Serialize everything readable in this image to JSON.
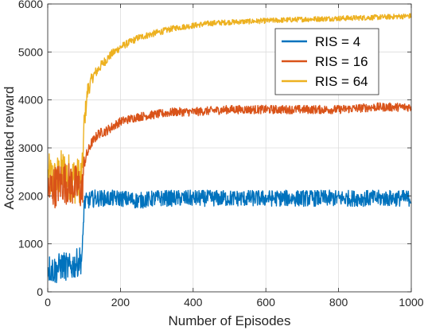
{
  "chart_data": {
    "type": "line",
    "title": "",
    "xlabel": "Number of Episodes",
    "ylabel": "Accumulated reward",
    "xlim": [
      0,
      1000
    ],
    "ylim": [
      0,
      6000
    ],
    "xticks": [
      0,
      200,
      400,
      600,
      800,
      1000
    ],
    "yticks": [
      0,
      1000,
      2000,
      3000,
      4000,
      5000,
      6000
    ],
    "xtick_labels": [
      "0",
      "200",
      "400",
      "600",
      "800",
      "1000"
    ],
    "ytick_labels": [
      "0",
      "1000",
      "2000",
      "3000",
      "4000",
      "5000",
      "6000"
    ],
    "grid": true,
    "legend_position": "top-right",
    "noise_note_removed": true,
    "series": [
      {
        "name": "RIS = 4",
        "color": "#0072BD",
        "x": [
          0,
          20,
          40,
          60,
          80,
          95,
          100,
          110,
          130,
          150,
          175,
          200,
          250,
          300,
          350,
          400,
          500,
          600,
          700,
          800,
          900,
          1000
        ],
        "y": [
          500,
          450,
          550,
          500,
          600,
          700,
          1850,
          1900,
          1950,
          1950,
          1950,
          1950,
          1900,
          1950,
          1950,
          1950,
          1950,
          1950,
          1950,
          1950,
          1950,
          1950
        ],
        "noise": [
          300,
          300,
          300,
          300,
          300,
          300,
          180,
          180,
          180,
          170,
          170,
          170,
          170,
          170,
          170,
          170,
          170,
          170,
          170,
          170,
          170,
          170
        ]
      },
      {
        "name": "RIS = 16",
        "color": "#D95319",
        "x": [
          0,
          20,
          40,
          60,
          80,
          95,
          100,
          120,
          140,
          160,
          180,
          200,
          250,
          300,
          350,
          400,
          500,
          600,
          700,
          800,
          900,
          1000
        ],
        "y": [
          2100,
          2200,
          2300,
          2250,
          2200,
          2100,
          2700,
          3100,
          3300,
          3350,
          3450,
          3550,
          3650,
          3700,
          3750,
          3750,
          3800,
          3800,
          3800,
          3800,
          3850,
          3850
        ],
        "noise": [
          450,
          450,
          450,
          450,
          450,
          450,
          150,
          100,
          100,
          100,
          100,
          90,
          90,
          90,
          90,
          90,
          90,
          90,
          90,
          90,
          90,
          90
        ]
      },
      {
        "name": "RIS = 64",
        "color": "#EDB120",
        "x": [
          0,
          20,
          40,
          60,
          80,
          95,
          100,
          110,
          125,
          150,
          175,
          200,
          250,
          300,
          350,
          400,
          450,
          500,
          600,
          700,
          800,
          900,
          1000
        ],
        "y": [
          2400,
          2300,
          2500,
          2400,
          2300,
          2400,
          3500,
          4200,
          4500,
          4750,
          4950,
          5100,
          5300,
          5400,
          5500,
          5550,
          5600,
          5620,
          5650,
          5680,
          5700,
          5720,
          5750
        ],
        "noise": [
          500,
          500,
          500,
          500,
          500,
          500,
          250,
          180,
          120,
          100,
          90,
          80,
          70,
          70,
          60,
          60,
          60,
          55,
          55,
          55,
          55,
          55,
          55
        ]
      }
    ]
  }
}
